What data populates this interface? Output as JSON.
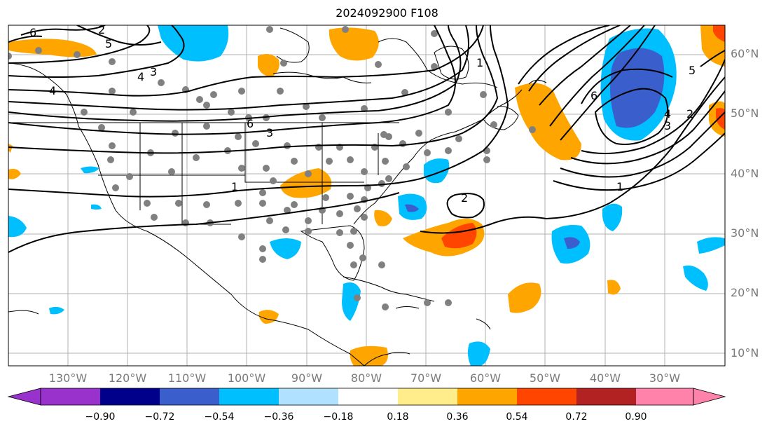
{
  "title": "2024092900 F108",
  "lat_labels": [
    "60°N",
    "50°N",
    "40°N",
    "30°N",
    "20°N",
    "10°N"
  ],
  "lon_labels": [
    "130°W",
    "120°W",
    "110°W",
    "100°W",
    "90°W",
    "80°W",
    "70°W",
    "60°W",
    "50°W",
    "40°W",
    "30°W"
  ],
  "contour_labels": [
    "6",
    "5",
    "4",
    "3",
    "2",
    "1",
    "6",
    "3",
    "4",
    "2",
    "1",
    "6",
    "5",
    "4",
    "3",
    "2",
    "1"
  ],
  "colorbar": {
    "ticks": [
      "−0.90",
      "−0.72",
      "−0.54",
      "−0.36",
      "−0.18",
      "0.18",
      "0.36",
      "0.54",
      "0.72",
      "0.90"
    ],
    "colors": [
      "#9932cc",
      "#00008b",
      "#3a5fcd",
      "#00bfff",
      "#b0e2ff",
      "#ffffff",
      "#ffec8b",
      "#ffa500",
      "#ff4500",
      "#b22222",
      "#ff82ab"
    ]
  }
}
